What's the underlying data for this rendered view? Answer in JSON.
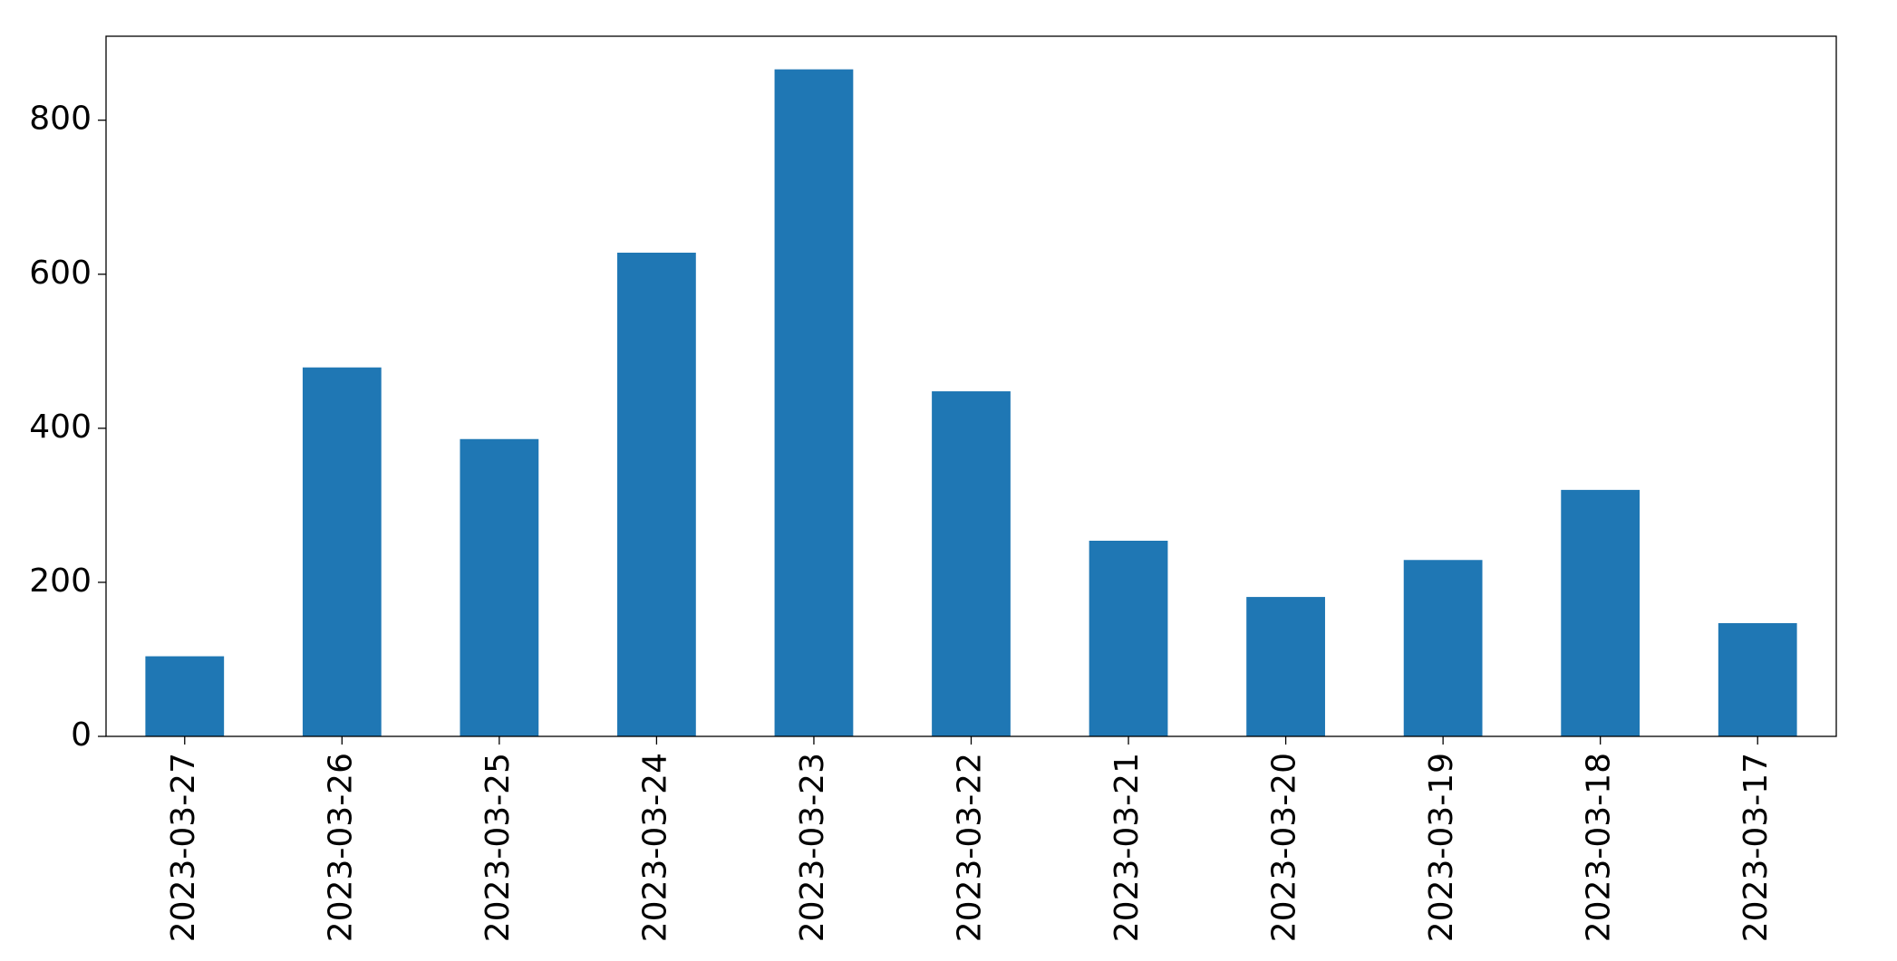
{
  "chart_data": {
    "type": "bar",
    "categories": [
      "2023-03-27",
      "2023-03-26",
      "2023-03-25",
      "2023-03-24",
      "2023-03-23",
      "2023-03-22",
      "2023-03-21",
      "2023-03-20",
      "2023-03-19",
      "2023-03-18",
      "2023-03-17"
    ],
    "values": [
      104,
      479,
      386,
      628,
      866,
      448,
      254,
      181,
      229,
      320,
      147
    ],
    "color": "#1f77b4",
    "ylim": [
      0,
      909
    ],
    "yticks": [
      0,
      200,
      400,
      600,
      800
    ],
    "grid": false
  }
}
